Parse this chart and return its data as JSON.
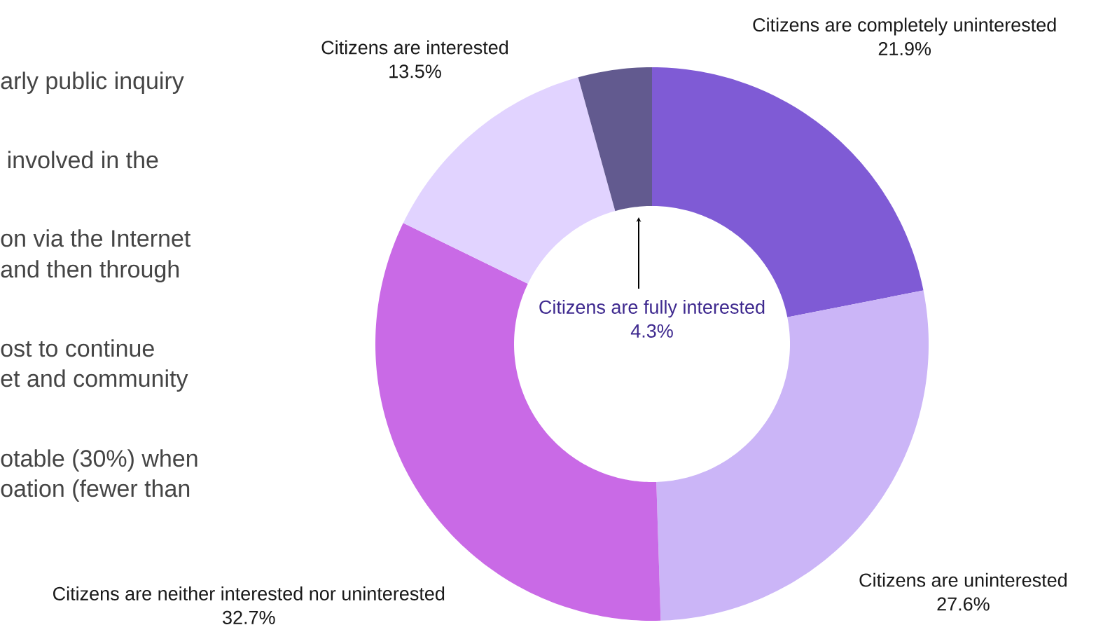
{
  "chart_data": {
    "type": "donut",
    "categories": [
      "Citizens are completely uninterested",
      "Citizens are uninterested",
      "Citizens are neither interested nor uninterested",
      "Citizens are interested",
      "Citizens are fully interested"
    ],
    "values": [
      21.9,
      27.6,
      32.7,
      13.5,
      4.3
    ],
    "value_labels": [
      "21.9%",
      "27.6%",
      "32.7%",
      "13.5%",
      "4.3%"
    ],
    "colors": [
      "#7f5bd5",
      "#cbb5f7",
      "#c96ae6",
      "#e1d3ff",
      "#625a8f"
    ],
    "annotations": [
      "arly public inquiry",
      " involved in the",
      "on via the Internet",
      "and then through",
      "ost to continue",
      "et and community",
      "otable (30%) when",
      "oation (fewer than"
    ]
  }
}
